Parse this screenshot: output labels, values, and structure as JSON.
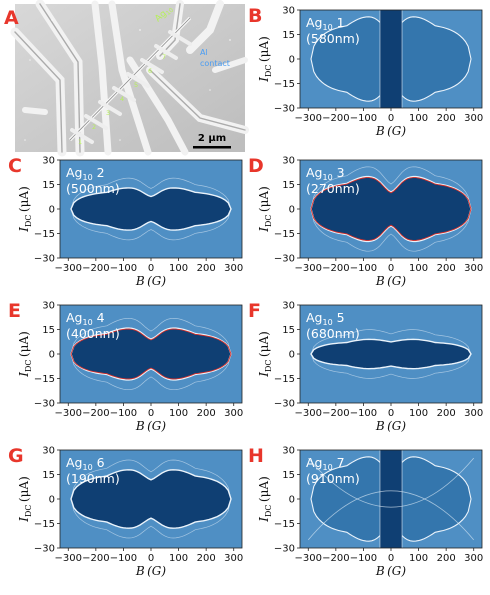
{
  "panel_a": {
    "letter": "A",
    "wire_label": "Ag",
    "wire_label_sub": "10",
    "contact_label_line1": "Al",
    "contact_label_line2": "contact",
    "scale_bar": "2 µm",
    "segment_numbers": [
      "1",
      "2",
      "3",
      "4",
      "5",
      "6",
      "7"
    ],
    "letter_color": "#e8362b",
    "wire_label_color": "#b6f05a",
    "contact_label_color": "#4a9df3"
  },
  "axes": {
    "xlabel": "B (G)",
    "ylabel_italic": "I",
    "ylabel_sub": "DC",
    "ylabel_unit": "(μA)",
    "x_ticks": [
      "−300",
      "−200",
      "−100",
      "0",
      "100",
      "200",
      "300"
    ],
    "y_ticks": [
      "30",
      "15",
      "0",
      "−15",
      "−30"
    ]
  },
  "panels": [
    {
      "letter": "B",
      "label_main": "Ag",
      "label_sub": "10",
      "label_num": " 1",
      "label_size": "(580nm)"
    },
    {
      "letter": "C",
      "label_main": "Ag",
      "label_sub": "10",
      "label_num": " 2",
      "label_size": "(500nm)"
    },
    {
      "letter": "D",
      "label_main": "Ag",
      "label_sub": "10",
      "label_num": " 3",
      "label_size": "(270nm)"
    },
    {
      "letter": "E",
      "label_main": "Ag",
      "label_sub": "10",
      "label_num": " 4",
      "label_size": "(400nm)"
    },
    {
      "letter": "F",
      "label_main": "Ag",
      "label_sub": "10",
      "label_num": " 5",
      "label_size": "(680nm)"
    },
    {
      "letter": "G",
      "label_main": "Ag",
      "label_sub": "10",
      "label_num": " 6",
      "label_size": "(190nm)"
    },
    {
      "letter": "H",
      "label_main": "Ag",
      "label_sub": "10",
      "label_num": " 7",
      "label_size": "(910nm)"
    }
  ],
  "colors": {
    "panel_letter": "#e8362b",
    "map_background": "#4f8fc4",
    "map_dark": "#0f3f73",
    "contour": "#eaf3fb",
    "red_trace": "#d8302a"
  }
}
